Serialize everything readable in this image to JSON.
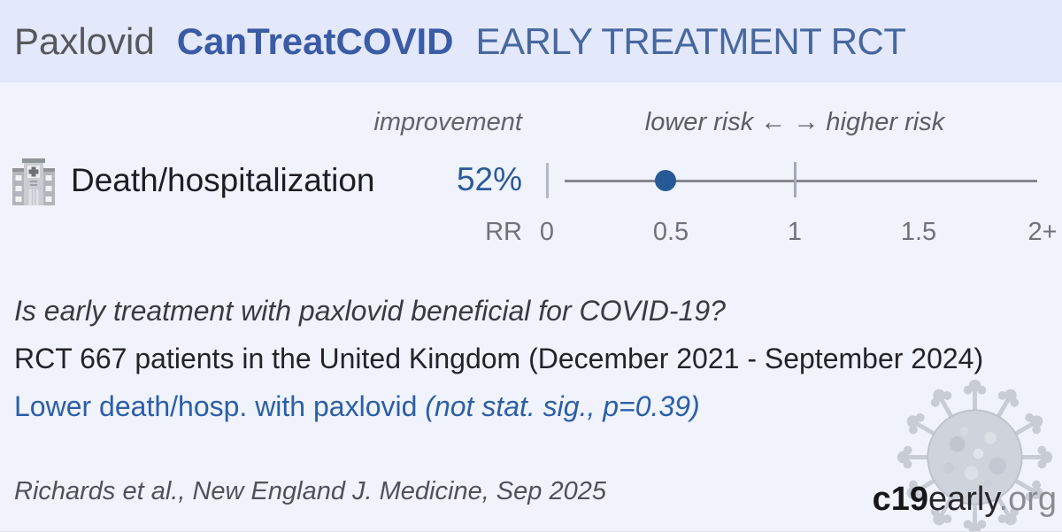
{
  "header": {
    "treatment": "Paxlovid",
    "trial_name": "CanTreatCOVID",
    "subtitle": "EARLY TREATMENT RCT"
  },
  "forest": {
    "improvement_label": "improvement",
    "risk_direction_label": "lower risk ← → higher risk",
    "outcome": {
      "icon": "hospital-icon",
      "label": "Death/hospitalization",
      "improvement": "52%"
    }
  },
  "chart_data": {
    "type": "scatter",
    "subtype": "forest-plot",
    "title": "Paxlovid CanTreatCOVID early treatment RCT — relative risk",
    "series": [
      {
        "name": "Death/hospitalization",
        "improvement_pct": 52,
        "rr": 0.48,
        "ci_visible": [
          0.07,
          1.98
        ],
        "point_color": "#265a96"
      }
    ],
    "x_axis": {
      "label": "RR",
      "range": [
        0,
        2
      ],
      "reference_line": 1,
      "ticks": [
        {
          "value": 0,
          "label": "0"
        },
        {
          "value": 0.5,
          "label": "0.5"
        },
        {
          "value": 1,
          "label": "1"
        },
        {
          "value": 1.5,
          "label": "1.5"
        },
        {
          "value": 2,
          "label": "2+"
        }
      ],
      "left_label": "lower risk",
      "right_label": "higher risk"
    },
    "grid": false,
    "legend": false
  },
  "summary": {
    "question": "Is early treatment with paxlovid beneficial for COVID-19?",
    "study": "RCT 667 patients in the United Kingdom (December 2021 - September 2024)",
    "result": "Lower death/hosp. with paxlovid ",
    "result_note": "(not stat. sig., p=0.39)"
  },
  "footer": {
    "citation": "Richards et al., New England J. Medicine, Sep 2025",
    "logo_bold": "c19",
    "logo_regular": "early",
    "logo_suffix": ".org"
  },
  "icons": [
    "hospital-icon",
    "virus-watermark-icon"
  ],
  "colors": {
    "page_background": "#f0f2fc",
    "header_background": "#e3e8fb",
    "brand_blue": "#3a5ba5",
    "subtitle_blue": "#47679f",
    "accent_blue": "#265a96",
    "result_blue": "#2b5fa7",
    "axis_gray": "#85868e"
  }
}
